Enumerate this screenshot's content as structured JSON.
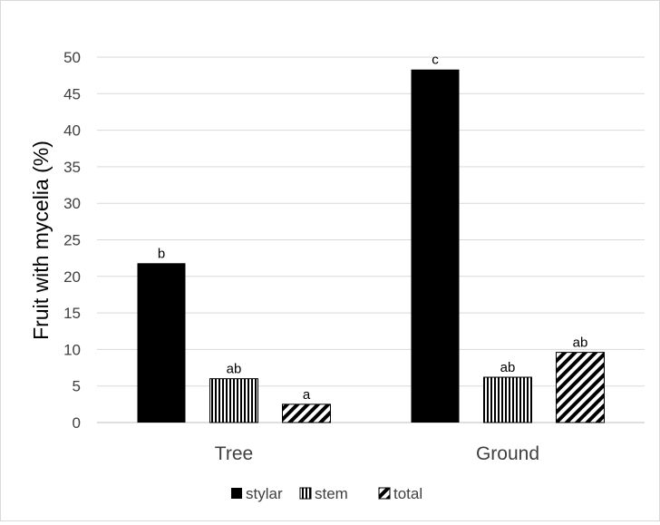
{
  "chart_data": {
    "type": "bar",
    "title": "",
    "xlabel": "",
    "ylabel": "Fruit with mycelia (%)",
    "ylim": [
      0,
      50
    ],
    "yticks": [
      "0",
      "5",
      "10",
      "15",
      "20",
      "25",
      "30",
      "35",
      "40",
      "45",
      "50"
    ],
    "grid": true,
    "legend_position": "bottom",
    "categories": [
      "Tree",
      "Ground"
    ],
    "series": [
      {
        "name": "stylar",
        "pattern": "solid",
        "color": "#000000",
        "values": [
          21.8,
          48.3
        ],
        "labels": [
          "b",
          "c"
        ]
      },
      {
        "name": "stem",
        "pattern": "vertical-lines",
        "color": "#000000",
        "values": [
          6.0,
          6.2
        ],
        "labels": [
          "ab",
          "ab"
        ]
      },
      {
        "name": "total",
        "pattern": "diagonal-lines",
        "color": "#000000",
        "values": [
          2.5,
          9.6
        ],
        "labels": [
          "a",
          "ab"
        ]
      }
    ]
  }
}
